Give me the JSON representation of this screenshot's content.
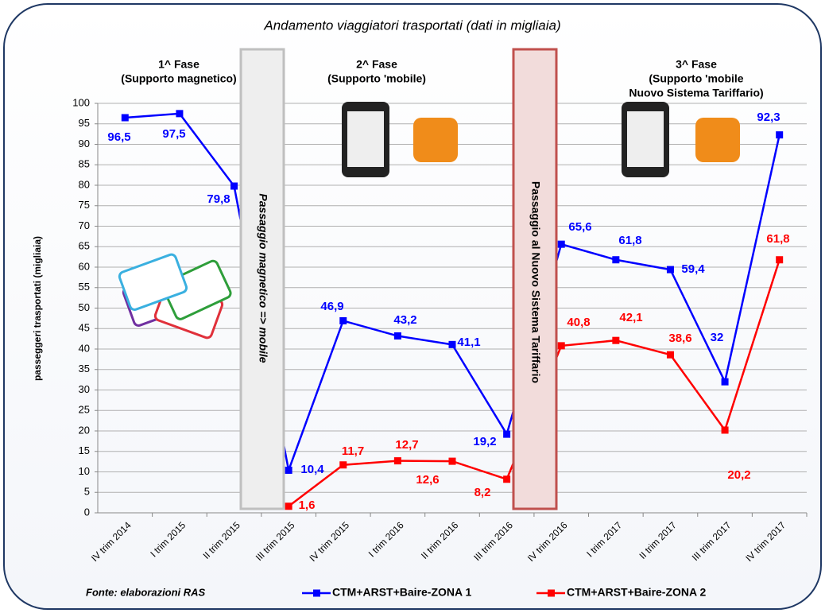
{
  "chart_data": {
    "type": "line",
    "title": "Andamento viaggiatori trasportati (dati in migliaia)",
    "y_label": "passeggeri trasportati  (migliaia)",
    "source": "Fonte: elaborazioni RAS",
    "phases": [
      [
        "1^ Fase",
        "(Supporto magnetico)"
      ],
      [
        "2^ Fase",
        "(Supporto 'mobile)"
      ],
      [
        "3^ Fase",
        "(Supporto 'mobile",
        "Nuovo Sistema Tariffario)"
      ]
    ],
    "transitions": [
      "Passaggio magnetico => mobile",
      "Passaggio al Nuovo Sistema Tariffario"
    ],
    "categories": [
      "IV trim 2014",
      "I trim 2015",
      "II trim 2015",
      "III trim 2015",
      "IV trim 2015",
      "I trim 2016",
      "II trim 2016",
      "III trim 2016",
      "IV trim 2016",
      "I trim 2017",
      "II trim 2017",
      "III trim 2017",
      "IV trim 2017"
    ],
    "series": [
      {
        "name": "CTM+ARST+Baire-ZONA 1",
        "color": "#0000ff",
        "values": [
          96.5,
          97.5,
          79.8,
          10.4,
          46.9,
          43.2,
          41.1,
          19.2,
          65.6,
          61.8,
          59.4,
          32,
          92.3
        ],
        "value_labels": [
          "96,5",
          "97,5",
          "79,8",
          "10,4",
          "46,9",
          "43,2",
          "41,1",
          "19,2",
          "65,6",
          "61,8",
          "59,4",
          "32",
          "92,3"
        ]
      },
      {
        "name": "CTM+ARST+Baire-ZONA 2",
        "color": "#ff0000",
        "values": [
          null,
          null,
          null,
          1.6,
          11.7,
          12.7,
          12.6,
          8.2,
          40.8,
          42.1,
          38.6,
          20.2,
          61.8
        ],
        "value_labels": [
          null,
          null,
          null,
          "1,6",
          "11,7",
          "12,7",
          "12,6",
          "8,2",
          "40,8",
          "42,1",
          "38,6",
          "20,2",
          "61,8"
        ]
      }
    ],
    "ylim": [
      0,
      100
    ],
    "yticks": [
      0,
      5,
      10,
      15,
      20,
      25,
      30,
      35,
      40,
      45,
      50,
      55,
      60,
      65,
      70,
      75,
      80,
      85,
      90,
      95,
      100
    ],
    "grid": true
  }
}
